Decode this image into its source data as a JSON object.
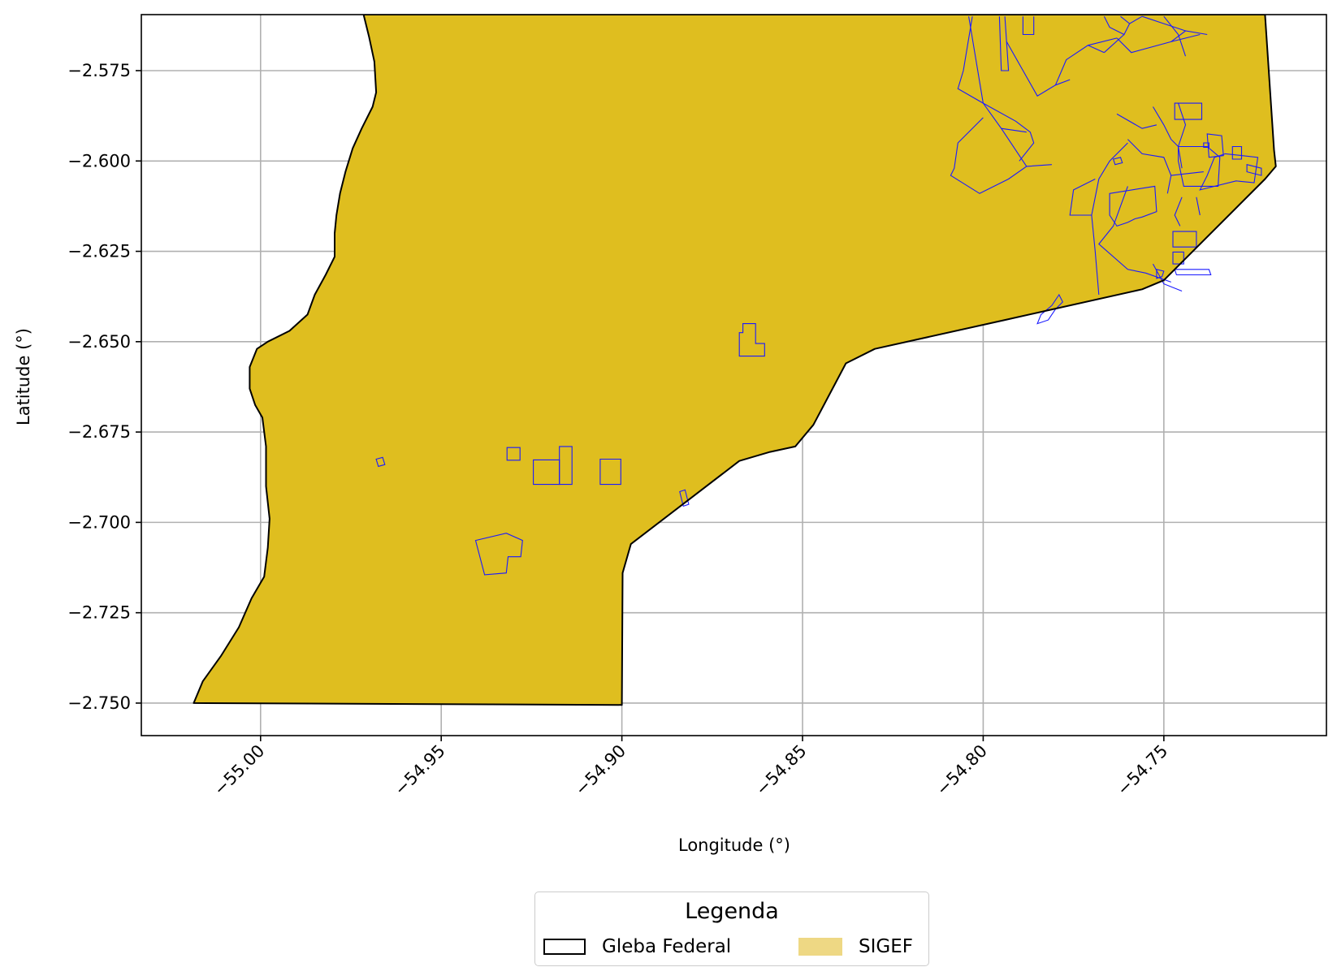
{
  "chart_data": {
    "type": "map",
    "xlabel": "Longitude (°)",
    "ylabel": "Latitude (°)",
    "xlim": [
      -55.033,
      -54.705
    ],
    "ylim": [
      -2.759,
      -2.5595
    ],
    "xticks": [
      -55.0,
      -54.95,
      -54.9,
      -54.85,
      -54.8,
      -54.75
    ],
    "xtick_labels": [
      "−55.00",
      "−54.95",
      "−54.90",
      "−54.85",
      "−54.80",
      "−54.75"
    ],
    "yticks": [
      -2.575,
      -2.6,
      -2.625,
      -2.65,
      -2.675,
      -2.7,
      -2.725,
      -2.75
    ],
    "ytick_labels": [
      "−2.575",
      "−2.600",
      "−2.625",
      "−2.650",
      "−2.675",
      "−2.700",
      "−2.725",
      "−2.750"
    ],
    "grid": true,
    "colors": {
      "gleba_outline": "#000000",
      "sigef_fill": "#dfbe1f",
      "parcel_outline": "#1a1aff",
      "grid": "#b0b0b0"
    },
    "gleba_boundary": [
      [
        -54.9715,
        -2.5595
      ],
      [
        -54.97,
        -2.5655
      ],
      [
        -54.9685,
        -2.5725
      ],
      [
        -54.968,
        -2.581
      ],
      [
        -54.969,
        -2.585
      ],
      [
        -54.972,
        -2.591
      ],
      [
        -54.9745,
        -2.5965
      ],
      [
        -54.9765,
        -2.603
      ],
      [
        -54.978,
        -2.609
      ],
      [
        -54.979,
        -2.615
      ],
      [
        -54.9795,
        -2.62
      ],
      [
        -54.9795,
        -2.6265
      ],
      [
        -54.982,
        -2.6315
      ],
      [
        -54.985,
        -2.637
      ],
      [
        -54.987,
        -2.6425
      ],
      [
        -54.992,
        -2.647
      ],
      [
        -54.998,
        -2.65
      ],
      [
        -55.001,
        -2.652
      ],
      [
        -55.003,
        -2.657
      ],
      [
        -55.003,
        -2.663
      ],
      [
        -55.0015,
        -2.6675
      ],
      [
        -54.9995,
        -2.671
      ],
      [
        -54.9985,
        -2.679
      ],
      [
        -54.9985,
        -2.69
      ],
      [
        -54.9975,
        -2.699
      ],
      [
        -54.998,
        -2.707
      ],
      [
        -54.999,
        -2.715
      ],
      [
        -55.0025,
        -2.721
      ],
      [
        -55.006,
        -2.729
      ],
      [
        -55.011,
        -2.737
      ],
      [
        -55.016,
        -2.744
      ],
      [
        -55.0185,
        -2.75
      ],
      [
        -54.9,
        -2.7505
      ],
      [
        -54.8998,
        -2.714
      ],
      [
        -54.8975,
        -2.706
      ],
      [
        -54.8825,
        -2.6945
      ],
      [
        -54.8675,
        -2.683
      ],
      [
        -54.859,
        -2.6805
      ],
      [
        -54.852,
        -2.679
      ],
      [
        -54.847,
        -2.673
      ],
      [
        -54.838,
        -2.656
      ],
      [
        -54.83,
        -2.652
      ],
      [
        -54.794,
        -2.644
      ],
      [
        -54.756,
        -2.6355
      ],
      [
        -54.75,
        -2.633
      ],
      [
        -54.722,
        -2.605
      ],
      [
        -54.719,
        -2.6015
      ],
      [
        -54.7195,
        -2.597
      ],
      [
        -54.722,
        -2.5595
      ]
    ],
    "sigef_parcels": [
      [
        [
          -54.8675,
          -2.654
        ],
        [
          -54.8605,
          -2.654
        ],
        [
          -54.8605,
          -2.6505
        ],
        [
          -54.863,
          -2.6505
        ],
        [
          -54.863,
          -2.645
        ],
        [
          -54.8665,
          -2.645
        ],
        [
          -54.8665,
          -2.6475
        ],
        [
          -54.8675,
          -2.6475
        ]
      ],
      [
        [
          -54.906,
          -2.6825
        ],
        [
          -54.9003,
          -2.6825
        ],
        [
          -54.9003,
          -2.6895
        ],
        [
          -54.906,
          -2.6895
        ]
      ],
      [
        [
          -54.9245,
          -2.6827
        ],
        [
          -54.9173,
          -2.6827
        ],
        [
          -54.9173,
          -2.6895
        ],
        [
          -54.9245,
          -2.6895
        ]
      ],
      [
        [
          -54.9173,
          -2.679
        ],
        [
          -54.9138,
          -2.679
        ],
        [
          -54.9138,
          -2.6895
        ],
        [
          -54.9173,
          -2.6895
        ]
      ],
      [
        [
          -54.9318,
          -2.6793
        ],
        [
          -54.9282,
          -2.6793
        ],
        [
          -54.9282,
          -2.6828
        ],
        [
          -54.9318,
          -2.6828
        ]
      ],
      [
        [
          -54.968,
          -2.6825
        ],
        [
          -54.9662,
          -2.682
        ],
        [
          -54.9656,
          -2.684
        ],
        [
          -54.9674,
          -2.6845
        ]
      ],
      [
        [
          -54.9405,
          -2.705
        ],
        [
          -54.932,
          -2.703
        ],
        [
          -54.9275,
          -2.705
        ],
        [
          -54.928,
          -2.7095
        ],
        [
          -54.9315,
          -2.7095
        ],
        [
          -54.932,
          -2.714
        ],
        [
          -54.938,
          -2.7145
        ]
      ],
      [
        [
          -54.884,
          -2.6915
        ],
        [
          -54.8825,
          -2.691
        ],
        [
          -54.8815,
          -2.695
        ],
        [
          -54.883,
          -2.6955
        ]
      ],
      [
        [
          -54.779,
          -2.637
        ],
        [
          -54.781,
          -2.64
        ],
        [
          -54.784,
          -2.6425
        ],
        [
          -54.785,
          -2.645
        ],
        [
          -54.782,
          -2.644
        ],
        [
          -54.78,
          -2.641
        ],
        [
          -54.778,
          -2.639
        ]
      ],
      [
        [
          -54.765,
          -2.609
        ],
        [
          -54.7525,
          -2.607
        ],
        [
          -54.752,
          -2.614
        ],
        [
          -54.756,
          -2.6155
        ],
        [
          -54.758,
          -2.616
        ],
        [
          -54.76,
          -2.617
        ],
        [
          -54.763,
          -2.618
        ],
        [
          -54.765,
          -2.615
        ]
      ],
      [
        [
          -54.747,
          -2.584
        ],
        [
          -54.7395,
          -2.584
        ],
        [
          -54.7395,
          -2.5885
        ],
        [
          -54.747,
          -2.5885
        ]
      ],
      [
        [
          -54.746,
          -2.6
        ],
        [
          -54.7445,
          -2.607
        ],
        [
          -54.735,
          -2.607
        ],
        [
          -54.7345,
          -2.599
        ],
        [
          -54.738,
          -2.596
        ],
        [
          -54.746,
          -2.596
        ]
      ],
      [
        [
          -54.738,
          -2.5925
        ],
        [
          -54.734,
          -2.593
        ],
        [
          -54.7335,
          -2.5985
        ],
        [
          -54.7375,
          -2.599
        ]
      ],
      [
        [
          -54.74,
          -2.608
        ],
        [
          -54.73,
          -2.6055
        ],
        [
          -54.725,
          -2.606
        ],
        [
          -54.724,
          -2.599
        ],
        [
          -54.733,
          -2.598
        ],
        [
          -54.736,
          -2.599
        ],
        [
          -54.738,
          -2.604
        ]
      ],
      [
        [
          -54.731,
          -2.596
        ],
        [
          -54.7285,
          -2.596
        ],
        [
          -54.7285,
          -2.5995
        ],
        [
          -54.731,
          -2.5995
        ]
      ],
      [
        [
          -54.727,
          -2.601
        ],
        [
          -54.723,
          -2.602
        ],
        [
          -54.723,
          -2.604
        ],
        [
          -54.727,
          -2.603
        ]
      ],
      [
        [
          -54.7475,
          -2.6195
        ],
        [
          -54.741,
          -2.6195
        ],
        [
          -54.741,
          -2.6238
        ],
        [
          -54.7475,
          -2.6238
        ]
      ],
      [
        [
          -54.7475,
          -2.6252
        ],
        [
          -54.7445,
          -2.6252
        ],
        [
          -54.7445,
          -2.6285
        ],
        [
          -54.7475,
          -2.6285
        ]
      ],
      [
        [
          -54.747,
          -2.63
        ],
        [
          -54.7375,
          -2.63
        ],
        [
          -54.737,
          -2.6315
        ],
        [
          -54.7465,
          -2.6315
        ]
      ],
      [
        [
          -54.739,
          -2.595
        ],
        [
          -54.7375,
          -2.595
        ],
        [
          -54.7375,
          -2.5962
        ],
        [
          -54.739,
          -2.5962
        ]
      ],
      [
        [
          -54.764,
          -2.5995
        ],
        [
          -54.762,
          -2.599
        ],
        [
          -54.7615,
          -2.6005
        ],
        [
          -54.7635,
          -2.601
        ]
      ],
      [
        [
          -54.752,
          -2.63
        ],
        [
          -54.75,
          -2.6305
        ],
        [
          -54.7505,
          -2.632
        ],
        [
          -54.752,
          -2.6325
        ]
      ]
    ],
    "sigef_lines": [
      [
        [
          -54.803,
          -2.56
        ],
        [
          -54.8055,
          -2.575
        ],
        [
          -54.807,
          -2.58
        ],
        [
          -54.8,
          -2.584
        ],
        [
          -54.795,
          -2.591
        ],
        [
          -54.788,
          -2.592
        ]
      ],
      [
        [
          -54.8,
          -2.584
        ],
        [
          -54.791,
          -2.589
        ],
        [
          -54.787,
          -2.592
        ],
        [
          -54.786,
          -2.595
        ],
        [
          -54.79,
          -2.6
        ]
      ],
      [
        [
          -54.8,
          -2.588
        ],
        [
          -54.807,
          -2.595
        ],
        [
          -54.808,
          -2.602
        ],
        [
          -54.809,
          -2.604
        ],
        [
          -54.801,
          -2.609
        ],
        [
          -54.793,
          -2.605
        ],
        [
          -54.788,
          -2.6015
        ],
        [
          -54.781,
          -2.601
        ]
      ],
      [
        [
          -54.795,
          -2.591
        ],
        [
          -54.788,
          -2.6015
        ]
      ],
      [
        [
          -54.804,
          -2.56
        ],
        [
          -54.8,
          -2.584
        ]
      ],
      [
        [
          -54.789,
          -2.56
        ],
        [
          -54.789,
          -2.565
        ],
        [
          -54.786,
          -2.565
        ],
        [
          -54.786,
          -2.56
        ]
      ],
      [
        [
          -54.7955,
          -2.56
        ],
        [
          -54.795,
          -2.575
        ],
        [
          -54.793,
          -2.575
        ],
        [
          -54.794,
          -2.56
        ]
      ],
      [
        [
          -54.7935,
          -2.567
        ],
        [
          -54.785,
          -2.582
        ],
        [
          -54.78,
          -2.579
        ],
        [
          -54.776,
          -2.5775
        ]
      ],
      [
        [
          -54.78,
          -2.579
        ],
        [
          -54.777,
          -2.572
        ],
        [
          -54.771,
          -2.568
        ],
        [
          -54.763,
          -2.566
        ]
      ],
      [
        [
          -54.771,
          -2.568
        ],
        [
          -54.7665,
          -2.57
        ]
      ],
      [
        [
          -54.7665,
          -2.56
        ],
        [
          -54.765,
          -2.563
        ],
        [
          -54.761,
          -2.565
        ],
        [
          -54.7595,
          -2.562
        ],
        [
          -54.762,
          -2.56
        ]
      ],
      [
        [
          -54.7595,
          -2.562
        ],
        [
          -54.756,
          -2.56
        ]
      ],
      [
        [
          -54.7665,
          -2.57
        ],
        [
          -54.761,
          -2.565
        ]
      ],
      [
        [
          -54.763,
          -2.566
        ],
        [
          -54.759,
          -2.57
        ],
        [
          -54.748,
          -2.567
        ],
        [
          -54.74,
          -2.565
        ]
      ],
      [
        [
          -54.748,
          -2.567
        ],
        [
          -54.744,
          -2.564
        ],
        [
          -54.738,
          -2.565
        ]
      ],
      [
        [
          -54.75,
          -2.56
        ],
        [
          -54.746,
          -2.565
        ],
        [
          -54.744,
          -2.571
        ]
      ],
      [
        [
          -54.756,
          -2.56
        ],
        [
          -54.75,
          -2.562
        ],
        [
          -54.744,
          -2.564
        ]
      ],
      [
        [
          -54.746,
          -2.584
        ],
        [
          -54.744,
          -2.59
        ],
        [
          -54.746,
          -2.596
        ]
      ],
      [
        [
          -54.753,
          -2.585
        ],
        [
          -54.75,
          -2.59
        ],
        [
          -54.748,
          -2.594
        ],
        [
          -54.746,
          -2.596
        ],
        [
          -54.745,
          -2.602
        ]
      ],
      [
        [
          -54.763,
          -2.587
        ],
        [
          -54.756,
          -2.591
        ],
        [
          -54.752,
          -2.59
        ]
      ],
      [
        [
          -54.76,
          -2.594
        ],
        [
          -54.756,
          -2.598
        ],
        [
          -54.75,
          -2.599
        ],
        [
          -54.748,
          -2.604
        ],
        [
          -54.749,
          -2.609
        ]
      ],
      [
        [
          -54.748,
          -2.604
        ],
        [
          -54.739,
          -2.603
        ]
      ],
      [
        [
          -54.76,
          -2.595
        ],
        [
          -54.765,
          -2.6
        ],
        [
          -54.768,
          -2.605
        ],
        [
          -54.77,
          -2.615
        ],
        [
          -54.776,
          -2.615
        ],
        [
          -54.775,
          -2.608
        ],
        [
          -54.769,
          -2.605
        ]
      ],
      [
        [
          -54.77,
          -2.615
        ],
        [
          -54.769,
          -2.625
        ],
        [
          -54.768,
          -2.637
        ]
      ],
      [
        [
          -54.76,
          -2.607
        ],
        [
          -54.764,
          -2.618
        ],
        [
          -54.768,
          -2.623
        ],
        [
          -54.76,
          -2.63
        ],
        [
          -54.755,
          -2.631
        ],
        [
          -54.748,
          -2.6335
        ]
      ],
      [
        [
          -54.753,
          -2.6285
        ],
        [
          -54.75,
          -2.634
        ],
        [
          -54.745,
          -2.636
        ]
      ],
      [
        [
          -54.741,
          -2.61
        ],
        [
          -54.74,
          -2.615
        ]
      ],
      [
        [
          -54.745,
          -2.61
        ],
        [
          -54.747,
          -2.615
        ],
        [
          -54.7455,
          -2.618
        ]
      ]
    ]
  },
  "legend": {
    "title": "Legenda",
    "items": [
      {
        "label": "Gleba Federal",
        "style": "outline",
        "color": "#000000"
      },
      {
        "label": "SIGEF",
        "style": "fill",
        "color": "#eed884"
      }
    ]
  }
}
